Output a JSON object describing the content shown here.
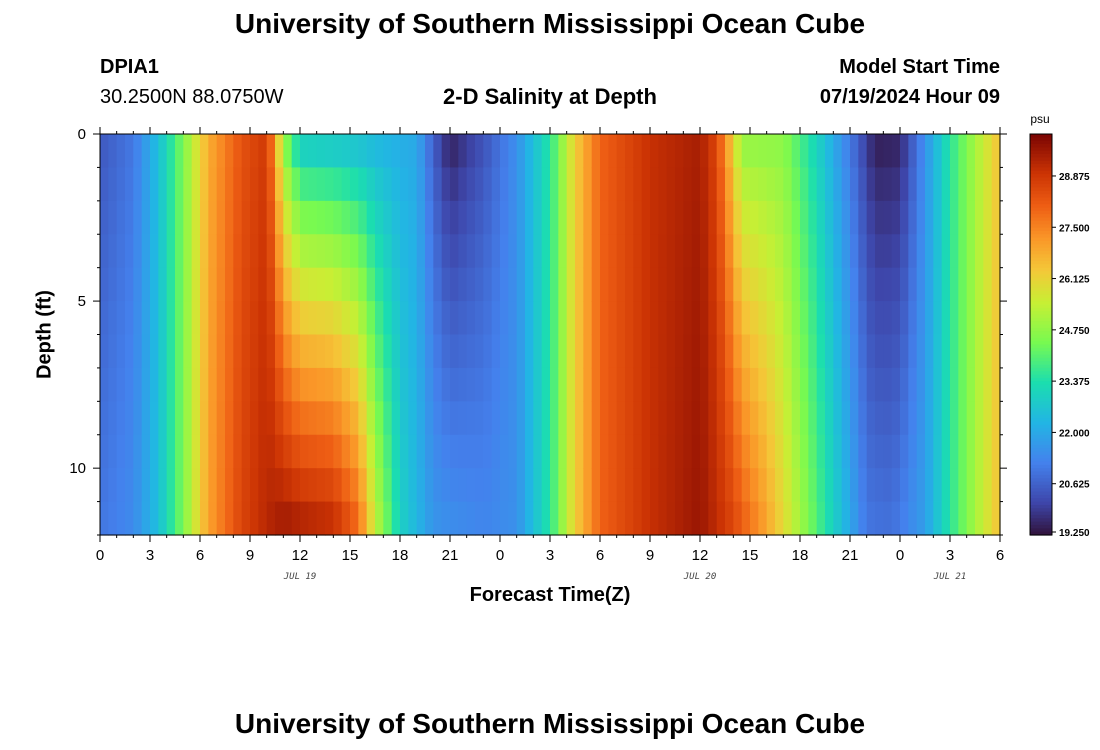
{
  "header": {
    "title": "University of Southern Mississippi Ocean Cube",
    "station_id": "DPIA1",
    "coordinates": "30.2500N  88.0750W",
    "plot_title": "2-D Salinity at Depth",
    "model_start_label": "Model Start Time",
    "model_start_value": "07/19/2024 Hour 09"
  },
  "footer": {
    "title": "University of Southern Mississippi Ocean Cube"
  },
  "chart_data": {
    "type": "heatmap",
    "title": "2-D Salinity at Depth",
    "xlabel": "Forecast Time(Z)",
    "ylabel": "Depth (ft)",
    "x_unit": "hours since 2024-07-19 00Z",
    "xlim": [
      0,
      54
    ],
    "ylim": [
      0,
      12
    ],
    "x_ticks": [
      0,
      3,
      6,
      9,
      12,
      15,
      18,
      21,
      24,
      27,
      30,
      33,
      36,
      39,
      42,
      45,
      48,
      51,
      54
    ],
    "x_tick_labels": [
      "0",
      "3",
      "6",
      "9",
      "12",
      "15",
      "18",
      "21",
      "0",
      "3",
      "6",
      "9",
      "12",
      "15",
      "18",
      "21",
      "0",
      "3",
      "6"
    ],
    "y_ticks": [
      0,
      5,
      10
    ],
    "y_tick_labels": [
      "0",
      "5",
      "10"
    ],
    "day_labels": [
      {
        "x": 12,
        "text": "JUL 19"
      },
      {
        "x": 36,
        "text": "JUL 20"
      },
      {
        "x": 51,
        "text": "JUL 21"
      }
    ],
    "colorbar": {
      "unit": "psu",
      "min": 19.25,
      "max": 30.0,
      "tick_values": [
        19.25,
        20.625,
        22.0,
        23.375,
        24.75,
        26.125,
        27.5,
        28.875
      ],
      "tick_labels": [
        "19.250",
        "20.625",
        "22.000",
        "23.375",
        "24.750",
        "26.125",
        "27.500",
        "28.875"
      ]
    },
    "depth_levels_ft": [
      0,
      1,
      2,
      3,
      4,
      5,
      6,
      7,
      8,
      9,
      10,
      11,
      12
    ],
    "surface_salinity_psu": [
      {
        "t": 0,
        "v": 20.4
      },
      {
        "t": 2,
        "v": 21.0
      },
      {
        "t": 3.5,
        "v": 22.5
      },
      {
        "t": 5,
        "v": 24.5
      },
      {
        "t": 6.5,
        "v": 26.8
      },
      {
        "t": 8.5,
        "v": 28.3
      },
      {
        "t": 10,
        "v": 28.8
      },
      {
        "t": 10.5,
        "v": 27.0
      },
      {
        "t": 11,
        "v": 24.5
      },
      {
        "t": 12,
        "v": 22.5
      },
      {
        "t": 19,
        "v": 22.0
      },
      {
        "t": 20,
        "v": 20.5
      },
      {
        "t": 21,
        "v": 19.4
      },
      {
        "t": 23,
        "v": 20.3
      },
      {
        "t": 25,
        "v": 21.5
      },
      {
        "t": 27,
        "v": 23.5
      },
      {
        "t": 28.5,
        "v": 26.2
      },
      {
        "t": 30,
        "v": 28.0
      },
      {
        "t": 33,
        "v": 29.0
      },
      {
        "t": 36,
        "v": 29.4
      },
      {
        "t": 37,
        "v": 28.5
      },
      {
        "t": 37.8,
        "v": 26.5
      },
      {
        "t": 38.5,
        "v": 24.6
      },
      {
        "t": 41,
        "v": 24.6
      },
      {
        "t": 43,
        "v": 23.0
      },
      {
        "t": 45,
        "v": 21.0
      },
      {
        "t": 46.5,
        "v": 19.4
      },
      {
        "t": 48,
        "v": 19.5
      },
      {
        "t": 49.5,
        "v": 21.5
      },
      {
        "t": 51,
        "v": 23.5
      },
      {
        "t": 53,
        "v": 25.5
      },
      {
        "t": 54,
        "v": 26.5
      }
    ],
    "bottom_salinity_psu": [
      {
        "t": 0,
        "v": 21.0
      },
      {
        "t": 2,
        "v": 21.4
      },
      {
        "t": 3.5,
        "v": 22.5
      },
      {
        "t": 5,
        "v": 24.5
      },
      {
        "t": 6.5,
        "v": 27.0
      },
      {
        "t": 8.5,
        "v": 28.6
      },
      {
        "t": 11,
        "v": 29.6
      },
      {
        "t": 14,
        "v": 29.2
      },
      {
        "t": 15.5,
        "v": 28.0
      },
      {
        "t": 16.5,
        "v": 25.5
      },
      {
        "t": 18,
        "v": 23.0
      },
      {
        "t": 20,
        "v": 21.6
      },
      {
        "t": 23,
        "v": 21.3
      },
      {
        "t": 25,
        "v": 21.5
      },
      {
        "t": 27,
        "v": 23.5
      },
      {
        "t": 28.5,
        "v": 26.2
      },
      {
        "t": 30,
        "v": 28.0
      },
      {
        "t": 33,
        "v": 29.0
      },
      {
        "t": 36,
        "v": 29.6
      },
      {
        "t": 38,
        "v": 28.6
      },
      {
        "t": 40,
        "v": 27.0
      },
      {
        "t": 42,
        "v": 25.0
      },
      {
        "t": 44,
        "v": 23.0
      },
      {
        "t": 46,
        "v": 21.0
      },
      {
        "t": 47.5,
        "v": 20.9
      },
      {
        "t": 49.5,
        "v": 21.8
      },
      {
        "t": 51,
        "v": 23.5
      },
      {
        "t": 53,
        "v": 25.5
      },
      {
        "t": 54,
        "v": 26.5
      }
    ]
  }
}
